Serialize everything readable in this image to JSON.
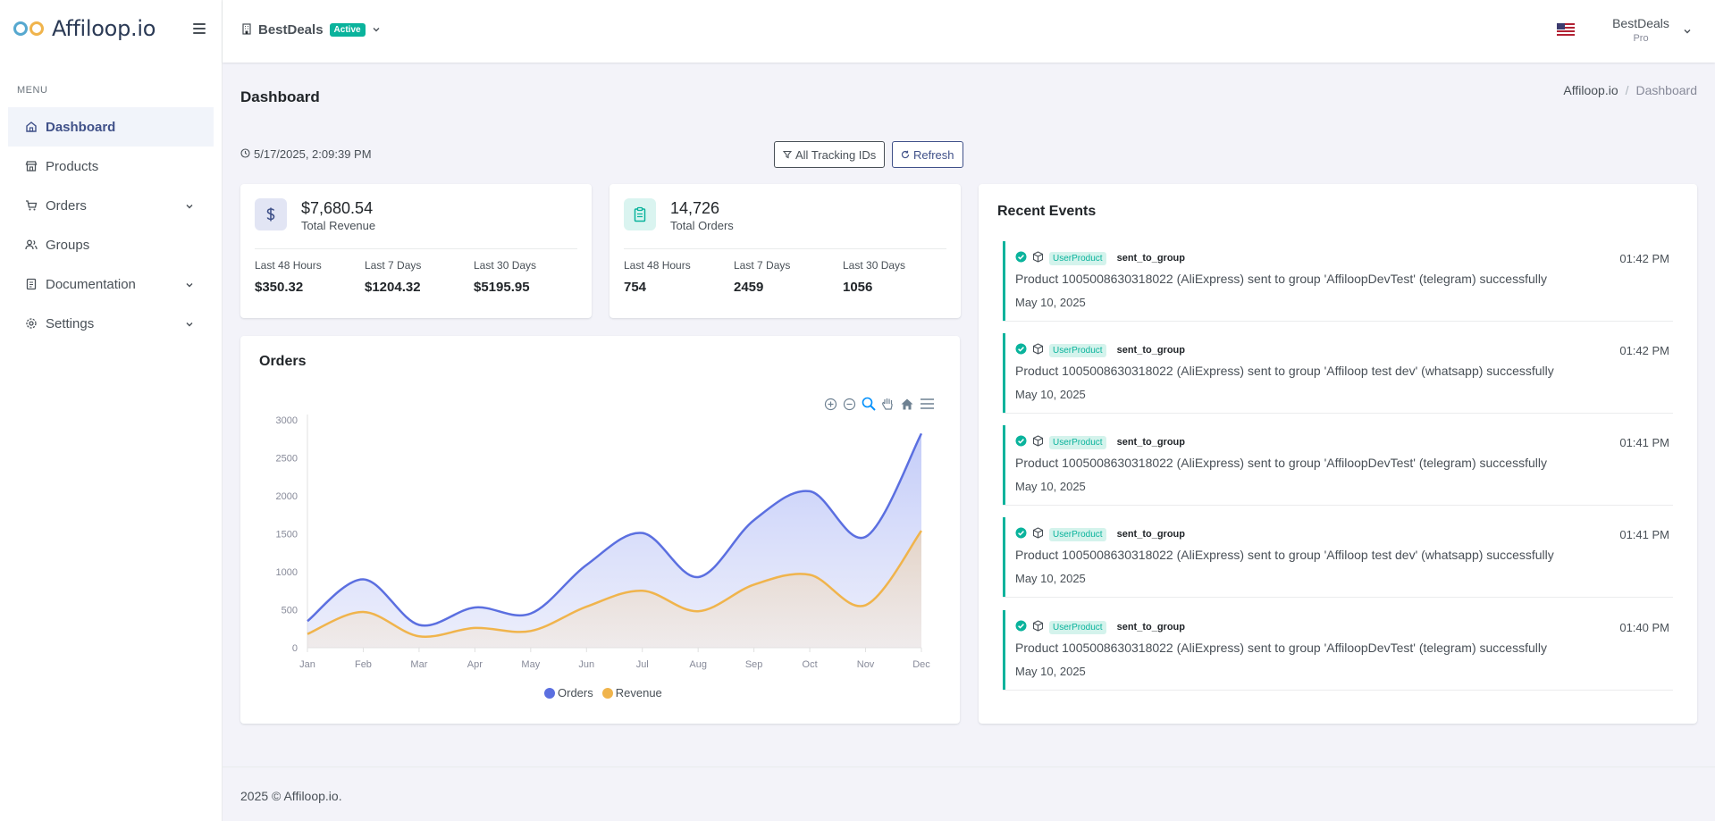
{
  "app": {
    "logo_text": "Affiloop.io"
  },
  "sidebar": {
    "menu_title": "MENU",
    "items": [
      {
        "label": "Dashboard",
        "icon": "home-icon",
        "active": true
      },
      {
        "label": "Products",
        "icon": "store-icon"
      },
      {
        "label": "Orders",
        "icon": "cart-icon",
        "has_submenu": true
      },
      {
        "label": "Groups",
        "icon": "users-icon"
      },
      {
        "label": "Documentation",
        "icon": "document-icon",
        "has_submenu": true
      },
      {
        "label": "Settings",
        "icon": "gear-icon",
        "has_submenu": true
      }
    ]
  },
  "topbar": {
    "store_name": "BestDeals",
    "store_status": "Active",
    "language_flag": "us-flag-icon",
    "user_name": "BestDeals",
    "user_plan": "Pro"
  },
  "page": {
    "title": "Dashboard",
    "breadcrumb": [
      "Affiloop.io",
      "Dashboard"
    ],
    "timestamp": "5/17/2025, 2:09:39 PM",
    "filter_button": "All Tracking IDs",
    "refresh_button": "Refresh"
  },
  "stats": [
    {
      "value": "$7,680.54",
      "label": "Total Revenue",
      "icon": "dollar-icon",
      "color": "#405189",
      "periods": [
        {
          "label": "Last 48 Hours",
          "value": "$350.32"
        },
        {
          "label": "Last 7 Days",
          "value": "$1204.32"
        },
        {
          "label": "Last 30 Days",
          "value": "$5195.95"
        }
      ]
    },
    {
      "value": "14,726",
      "label": "Total Orders",
      "icon": "clipboard-icon",
      "color": "#0ab39c",
      "periods": [
        {
          "label": "Last 48 Hours",
          "value": "754"
        },
        {
          "label": "Last 7 Days",
          "value": "2459"
        },
        {
          "label": "Last 30 Days",
          "value": "1056"
        }
      ]
    }
  ],
  "orders_card": {
    "title": "Orders"
  },
  "chart_data": {
    "type": "area",
    "title": "",
    "categories": [
      "Jan",
      "Feb",
      "Mar",
      "Apr",
      "May",
      "Jun",
      "Jul",
      "Aug",
      "Sep",
      "Oct",
      "Nov",
      "Dec"
    ],
    "series": [
      {
        "name": "Orders",
        "color": "#5b6fe0",
        "values": [
          350,
          900,
          300,
          530,
          450,
          1090,
          1510,
          930,
          1680,
          2060,
          1460,
          2820
        ]
      },
      {
        "name": "Revenue",
        "color": "#f0b44c",
        "values": [
          180,
          470,
          150,
          260,
          220,
          540,
          750,
          480,
          830,
          960,
          560,
          1540
        ]
      }
    ],
    "yticks": [
      "0",
      "500",
      "1000",
      "1500",
      "2000",
      "2500",
      "3000"
    ],
    "ylim": [
      0,
      3000
    ],
    "grid": false,
    "legend": "bottom"
  },
  "events_card": {
    "title": "Recent Events",
    "events": [
      {
        "type": "UserProduct",
        "action": "sent_to_group",
        "time": "01:42 PM",
        "message": "Product 1005008630318022 (AliExpress) sent to group 'AffiloopDevTest' (telegram) successfully",
        "date": "May 10, 2025"
      },
      {
        "type": "UserProduct",
        "action": "sent_to_group",
        "time": "01:42 PM",
        "message": "Product 1005008630318022 (AliExpress) sent to group 'Affiloop test dev' (whatsapp) successfully",
        "date": "May 10, 2025"
      },
      {
        "type": "UserProduct",
        "action": "sent_to_group",
        "time": "01:41 PM",
        "message": "Product 1005008630318022 (AliExpress) sent to group 'AffiloopDevTest' (telegram) successfully",
        "date": "May 10, 2025"
      },
      {
        "type": "UserProduct",
        "action": "sent_to_group",
        "time": "01:41 PM",
        "message": "Product 1005008630318022 (AliExpress) sent to group 'Affiloop test dev' (whatsapp) successfully",
        "date": "May 10, 2025"
      },
      {
        "type": "UserProduct",
        "action": "sent_to_group",
        "time": "01:40 PM",
        "message": "Product 1005008630318022 (AliExpress) sent to group 'AffiloopDevTest' (telegram) successfully",
        "date": "May 10, 2025"
      }
    ]
  },
  "footer": {
    "text": "2025 © Affiloop.io."
  }
}
